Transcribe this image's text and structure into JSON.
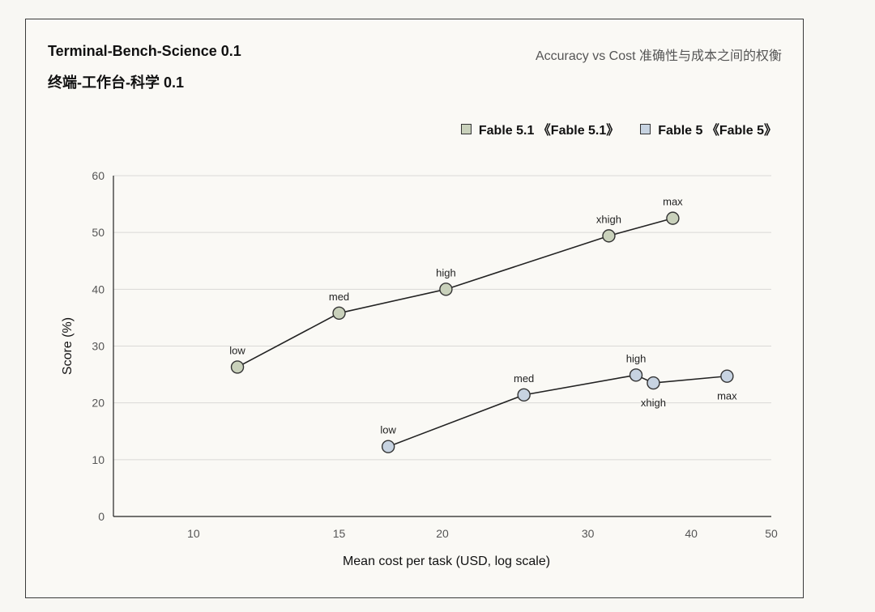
{
  "header": {
    "title_en": "Terminal-Bench-Science 0.1",
    "title_cn": "终端-工作台-科学 0.1",
    "subtitle": "Accuracy vs Cost  准确性与成本之间的权衡"
  },
  "chart_data": {
    "type": "scatter",
    "xlabel": "Mean cost per task (USD, log scale)",
    "ylabel": "Score (%)",
    "xscale": "log",
    "xlim": [
      8,
      50
    ],
    "ylim": [
      0,
      60
    ],
    "xticks": [
      10,
      15,
      20,
      30,
      40,
      50
    ],
    "yticks": [
      0,
      10,
      20,
      30,
      40,
      50,
      60
    ],
    "grid": "horizontal",
    "legend_position": "top-right",
    "series": [
      {
        "name": "Fable 5.1 《Fable 5.1》",
        "color": "#c9d1bb",
        "points": [
          {
            "label": "low",
            "x": 11.3,
            "y": 26.3
          },
          {
            "label": "med",
            "x": 15.0,
            "y": 35.8
          },
          {
            "label": "high",
            "x": 20.2,
            "y": 40.0
          },
          {
            "label": "xhigh",
            "x": 31.8,
            "y": 49.4
          },
          {
            "label": "max",
            "x": 38.0,
            "y": 52.5
          }
        ]
      },
      {
        "name": "Fable 5 《Fable 5》",
        "color": "#c7d3e1",
        "points": [
          {
            "label": "low",
            "x": 17.2,
            "y": 12.3
          },
          {
            "label": "med",
            "x": 25.1,
            "y": 21.4
          },
          {
            "label": "high",
            "x": 34.3,
            "y": 24.9
          },
          {
            "label": "xhigh",
            "x": 36.0,
            "y": 23.5
          },
          {
            "label": "max",
            "x": 44.2,
            "y": 24.7
          }
        ]
      }
    ]
  }
}
